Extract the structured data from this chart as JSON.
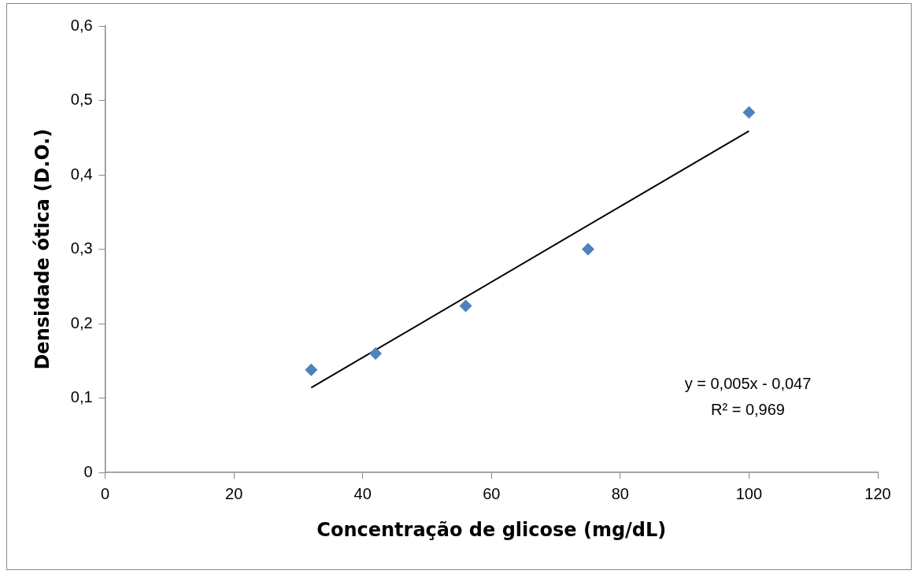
{
  "chart_data": {
    "type": "scatter",
    "xlabel": "Concentração de glicose (mg/dL)",
    "ylabel": "Densidade ótica (D.O.)",
    "series": [
      {
        "color": "#4f81bd",
        "marker": "diamond",
        "x": [
          32,
          42,
          56,
          75,
          100
        ],
        "values": [
          0.138,
          0.16,
          0.224,
          0.3,
          0.484
        ]
      },
      {
        "type": "line",
        "color": "#000000",
        "marker": "none",
        "line_style": "solid",
        "x": [
          32,
          100
        ],
        "values": [
          0.114,
          0.459
        ]
      }
    ],
    "xlim": [
      0,
      120
    ],
    "xticks": [
      0,
      20,
      40,
      60,
      80,
      100,
      120
    ],
    "ylim": [
      0,
      0.6
    ],
    "yticks": [
      0,
      {
        "value": 0.1,
        "label": "0,1"
      },
      {
        "value": 0.2,
        "label": "0,2"
      },
      {
        "value": 0.3,
        "label": "0,3"
      },
      {
        "value": 0.4,
        "label": "0,4"
      },
      {
        "value": 0.5,
        "label": "0,5"
      },
      {
        "value": 0.6,
        "label": "0,6"
      }
    ],
    "grid": false,
    "legend": false,
    "annotations": [
      "y = 0,005x - 0,047",
      "R² = 0,969"
    ]
  }
}
